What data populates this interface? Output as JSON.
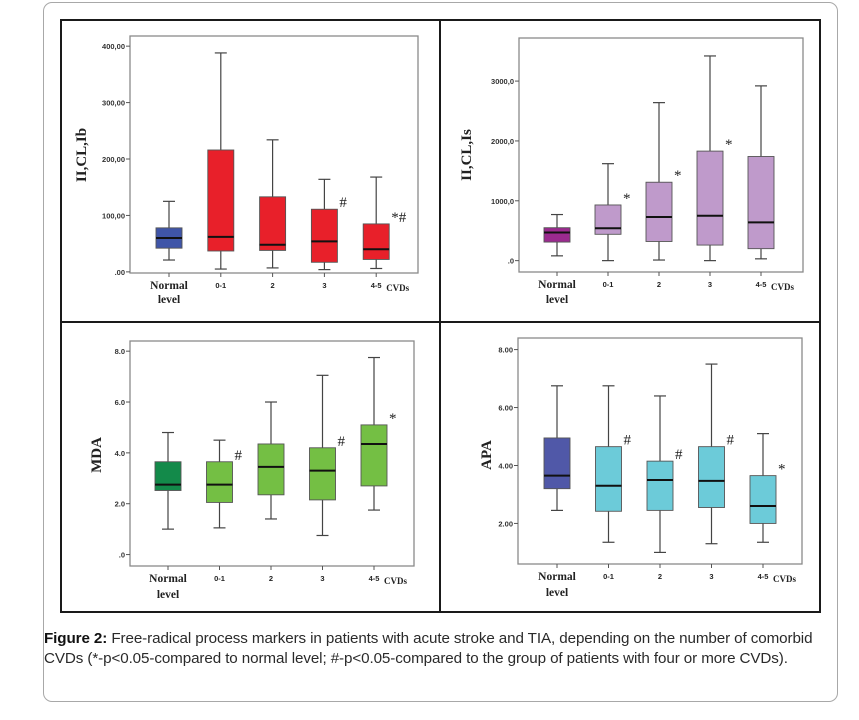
{
  "caption": {
    "label": "Figure 2:",
    "text": " Free-radical process markers in patients with acute stroke and TIA, depending on the number of comorbid CVDs (*-p<0.05-compared to normal level; #-p<0.05-compared to the group of patients with four or more CVDs)."
  },
  "chart_data": [
    {
      "type": "box",
      "panel": "top-left",
      "ylabel": "II,CL,Ib",
      "categories": [
        "Normal level",
        "0-1",
        "2",
        "3",
        "4-5"
      ],
      "category_suffix": "CVDs",
      "yticks": [
        ".00",
        "100,00",
        "200,00",
        "300,00",
        "400,00"
      ],
      "ytick_values": [
        0,
        100,
        200,
        300,
        400
      ],
      "ylim": [
        -2,
        418
      ],
      "colors": [
        "#3f55a8",
        "#e8202a",
        "#e8202a",
        "#e8202a",
        "#e8202a"
      ],
      "boxes": [
        {
          "min": 21,
          "q1": 42,
          "median": 60,
          "q3": 78,
          "max": 125,
          "marker": ""
        },
        {
          "min": 5,
          "q1": 37,
          "median": 62,
          "q3": 216,
          "max": 388,
          "marker": ""
        },
        {
          "min": 7,
          "q1": 38,
          "median": 48,
          "q3": 133,
          "max": 234,
          "marker": ""
        },
        {
          "min": 4,
          "q1": 17,
          "median": 54,
          "q3": 111,
          "max": 164,
          "marker": "#"
        },
        {
          "min": 6,
          "q1": 22,
          "median": 40,
          "q3": 85,
          "max": 168,
          "marker": "*#"
        }
      ]
    },
    {
      "type": "box",
      "panel": "top-right",
      "ylabel": "II,CL,Is",
      "categories": [
        "Normal level",
        "0-1",
        "2",
        "3",
        "4-5"
      ],
      "category_suffix": "CVDs",
      "yticks": [
        ".0",
        "1000,0",
        "2000,0",
        "3000,0"
      ],
      "ytick_values": [
        0,
        1000,
        2000,
        3000
      ],
      "ylim": [
        -190,
        3720
      ],
      "colors": [
        "#9b2a8f",
        "#bf9acb",
        "#bf9acb",
        "#bf9acb",
        "#bf9acb"
      ],
      "boxes": [
        {
          "min": 80,
          "q1": 310,
          "median": 470,
          "q3": 550,
          "max": 770,
          "marker": ""
        },
        {
          "min": 0,
          "q1": 440,
          "median": 540,
          "q3": 930,
          "max": 1620,
          "marker": "*"
        },
        {
          "min": 10,
          "q1": 320,
          "median": 730,
          "q3": 1310,
          "max": 2640,
          "marker": "*"
        },
        {
          "min": 0,
          "q1": 260,
          "median": 750,
          "q3": 1830,
          "max": 3420,
          "marker": "*"
        },
        {
          "min": 30,
          "q1": 200,
          "median": 640,
          "q3": 1740,
          "max": 2920,
          "marker": ""
        }
      ]
    },
    {
      "type": "box",
      "panel": "bottom-left",
      "ylabel": "MDA",
      "categories": [
        "Normal level",
        "0-1",
        "2",
        "3",
        "4-5"
      ],
      "category_suffix": "CVDs",
      "yticks": [
        ".0",
        "2.0",
        "4.0",
        "6.0",
        "8.0"
      ],
      "ytick_values": [
        0,
        2,
        4,
        6,
        8
      ],
      "ylim": [
        -0.45,
        8.4
      ],
      "colors": [
        "#138a4a",
        "#74bf44",
        "#74bf44",
        "#74bf44",
        "#74bf44"
      ],
      "boxes": [
        {
          "min": 1.0,
          "q1": 2.52,
          "median": 2.75,
          "q3": 3.65,
          "max": 4.8,
          "marker": ""
        },
        {
          "min": 1.05,
          "q1": 2.05,
          "median": 2.75,
          "q3": 3.65,
          "max": 4.5,
          "marker": "#"
        },
        {
          "min": 1.4,
          "q1": 2.35,
          "median": 3.45,
          "q3": 4.35,
          "max": 6.0,
          "marker": ""
        },
        {
          "min": 0.75,
          "q1": 2.15,
          "median": 3.3,
          "q3": 4.2,
          "max": 7.05,
          "marker": "#"
        },
        {
          "min": 1.75,
          "q1": 2.7,
          "median": 4.35,
          "q3": 5.1,
          "max": 7.75,
          "marker": "*"
        }
      ]
    },
    {
      "type": "box",
      "panel": "bottom-right",
      "ylabel": "APA",
      "categories": [
        "Normal level",
        "0-1",
        "2",
        "3",
        "4-5"
      ],
      "category_suffix": "CVDs",
      "yticks": [
        "2.00",
        "4.00",
        "6.00",
        "8.00"
      ],
      "ytick_values": [
        2,
        4,
        6,
        8
      ],
      "ylim": [
        0.6,
        8.4
      ],
      "colors": [
        "#5058a8",
        "#6ccbd9",
        "#6ccbd9",
        "#6ccbd9",
        "#6ccbd9"
      ],
      "boxes": [
        {
          "min": 2.45,
          "q1": 3.2,
          "median": 3.65,
          "q3": 4.95,
          "max": 6.75,
          "marker": ""
        },
        {
          "min": 1.35,
          "q1": 2.42,
          "median": 3.3,
          "q3": 4.65,
          "max": 6.75,
          "marker": "#"
        },
        {
          "min": 1.0,
          "q1": 2.45,
          "median": 3.5,
          "q3": 4.15,
          "max": 6.4,
          "marker": "#"
        },
        {
          "min": 1.3,
          "q1": 2.55,
          "median": 3.47,
          "q3": 4.65,
          "max": 7.5,
          "marker": "#"
        },
        {
          "min": 1.35,
          "q1": 2.0,
          "median": 2.6,
          "q3": 3.65,
          "max": 5.1,
          "marker": "*"
        }
      ]
    }
  ]
}
